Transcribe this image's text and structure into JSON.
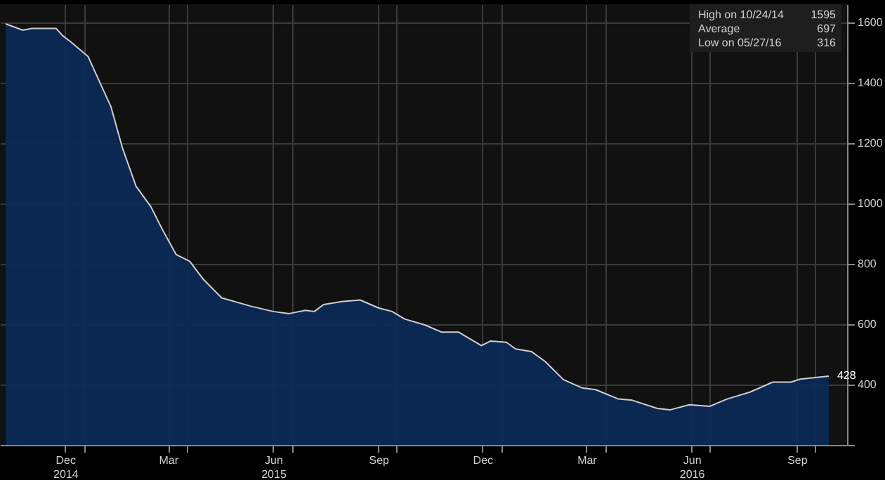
{
  "chart_data": {
    "type": "area",
    "x": [
      "2014-10-24",
      "2014-11-08",
      "2014-11-16",
      "2014-12-07",
      "2014-12-13",
      "2014-12-20",
      "2015-01-04",
      "2015-01-14",
      "2015-01-24",
      "2015-02-03",
      "2015-02-15",
      "2015-02-28",
      "2015-03-10",
      "2015-03-22",
      "2015-04-03",
      "2015-04-15",
      "2015-05-01",
      "2015-05-26",
      "2015-06-15",
      "2015-06-29",
      "2015-07-13",
      "2015-07-21",
      "2015-07-29",
      "2015-08-14",
      "2015-08-30",
      "2015-09-15",
      "2015-09-27",
      "2015-10-08",
      "2015-10-26",
      "2015-11-09",
      "2015-11-24",
      "2015-12-14",
      "2015-12-22",
      "2016-01-05",
      "2016-01-13",
      "2016-01-27",
      "2016-02-08",
      "2016-02-24",
      "2016-03-11",
      "2016-03-23",
      "2016-04-12",
      "2016-04-24",
      "2016-05-16",
      "2016-05-27",
      "2016-06-13",
      "2016-07-01",
      "2016-07-16",
      "2016-08-05",
      "2016-08-25",
      "2016-09-10",
      "2016-09-18",
      "2016-10-13"
    ],
    "series": [
      {
        "color": "#0c2a57",
        "values": [
          1595,
          1574,
          1580,
          1580,
          1555,
          1535,
          1487,
          1404,
          1321,
          1185,
          1057,
          989,
          914,
          831,
          808,
          748,
          687,
          660,
          642,
          635,
          646,
          642,
          665,
          675,
          680,
          654,
          642,
          617,
          597,
          574,
          574,
          529,
          544,
          540,
          518,
          509,
          476,
          416,
          389,
          383,
          352,
          348,
          321,
          316,
          333,
          328,
          352,
          375,
          408,
          408,
          418,
          428
        ]
      }
    ],
    "xlim": [
      "2014-10-19",
      "2016-10-29"
    ],
    "xticks": [
      {
        "value": "2014-12-15",
        "label": "Dec 2014"
      },
      {
        "value": "2015-03-15",
        "label": "Mar"
      },
      {
        "value": "2015-06-15",
        "label": "Jun 2015"
      },
      {
        "value": "2015-09-15",
        "label": "Sep"
      },
      {
        "value": "2015-12-15",
        "label": "Dec"
      },
      {
        "value": "2016-03-15",
        "label": "Mar"
      },
      {
        "value": "2016-06-15",
        "label": "Jun 2016"
      },
      {
        "value": "2016-09-15",
        "label": "Sep"
      },
      {
        "value": "2015-01-01",
        "label": null
      },
      {
        "value": "2015-04-01",
        "label": null
      },
      {
        "value": "2015-07-01",
        "label": null
      },
      {
        "value": "2015-10-01",
        "label": null
      },
      {
        "value": "2016-01-01",
        "label": null
      },
      {
        "value": "2016-04-01",
        "label": null
      },
      {
        "value": "2016-07-01",
        "label": null
      },
      {
        "value": "2016-10-01",
        "label": null
      }
    ],
    "ylim": [
      200,
      1660
    ],
    "yticks": [
      {
        "value": 200,
        "label": null
      },
      400,
      600,
      800,
      1000,
      1200,
      1400,
      1600
    ],
    "grid": true,
    "annotations": [
      "High on 10/24/14 1595",
      "Average 697",
      "Low on 05/27/16 316",
      {
        "text": "428",
        "x": "2016-10-13",
        "y": 428
      }
    ]
  }
}
